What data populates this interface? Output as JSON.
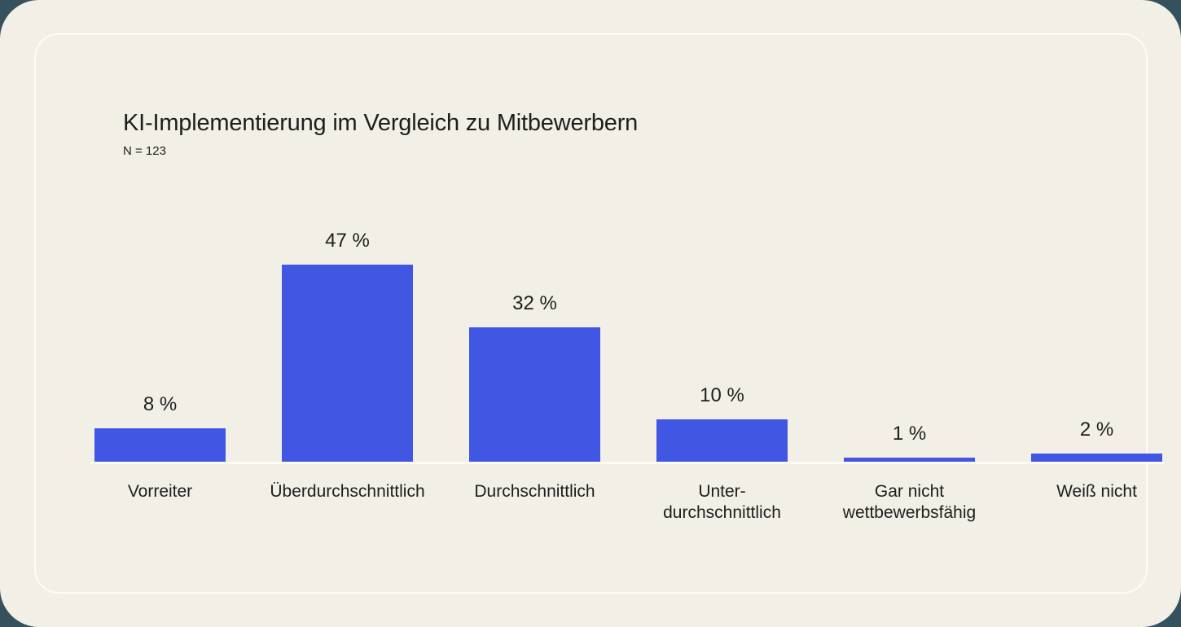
{
  "colors": {
    "outer_background": "#35515D",
    "page_background": "#F2EFE7",
    "card_border": "#FCFBF5",
    "bar": "#4156E2",
    "baseline": "#FCFBF5",
    "text": "#1E1E1C"
  },
  "header": {
    "title": "KI-Implementierung im Vergleich zu Mitbewerbern",
    "subtitle": "N = 123"
  },
  "chart_data": {
    "type": "bar",
    "title": "KI-Implementierung im Vergleich zu Mitbewerbern",
    "subtitle": "N = 123",
    "sample_size": "N = 123",
    "unit": "%",
    "categories": [
      "Vorreiter",
      "Überdurchschnittlich",
      "Durchschnittlich",
      "Unter-durchschnittlich",
      "Gar nicht wettbewerbsfähig",
      "Weiß nicht"
    ],
    "category_lines": [
      [
        "Vorreiter"
      ],
      [
        "Überdurchschnittlich"
      ],
      [
        "Durchschnittlich"
      ],
      [
        "Unter-",
        "durchschnittlich"
      ],
      [
        "Gar nicht",
        "wettbewerbsfähig"
      ],
      [
        "Weiß nicht"
      ]
    ],
    "values": [
      8,
      47,
      32,
      10,
      1,
      2
    ],
    "value_labels": [
      "8 %",
      "47 %",
      "32 %",
      "10 %",
      "1 %",
      "2 %"
    ],
    "xlabel": "",
    "ylabel": "",
    "ylim": [
      0,
      50
    ],
    "grid": false,
    "legend": false,
    "bar_color": "#4156E2"
  }
}
